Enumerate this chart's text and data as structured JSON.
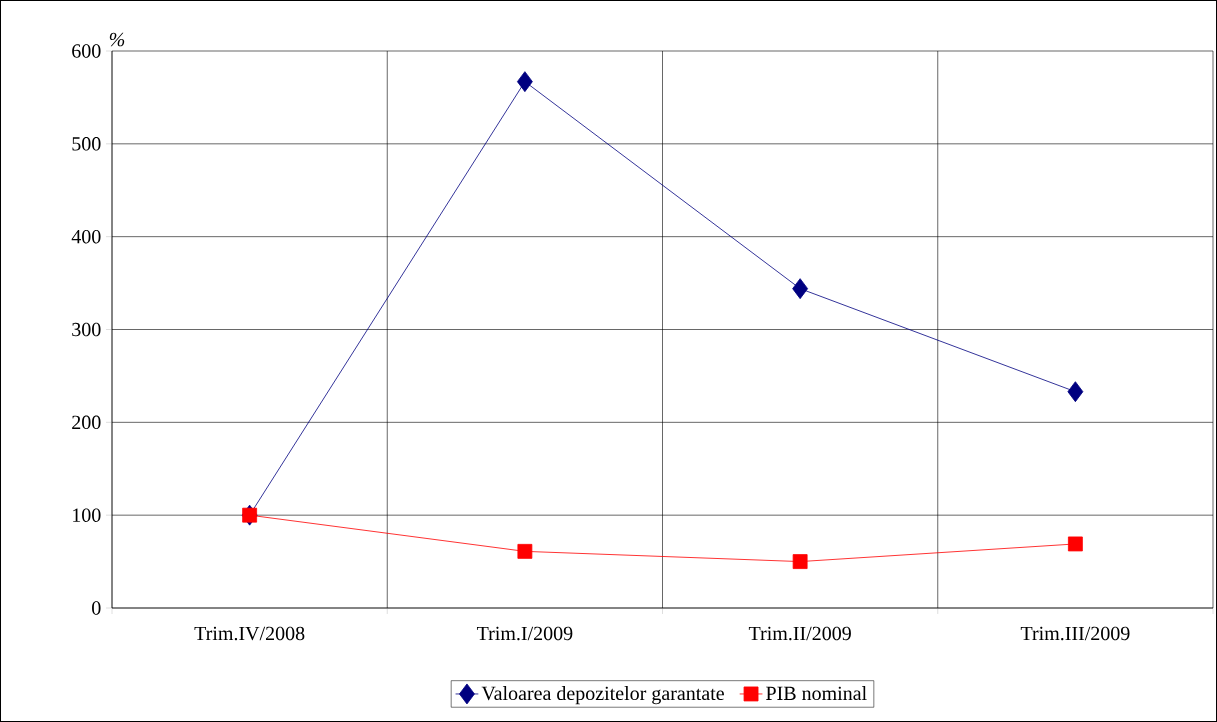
{
  "chart_data": {
    "type": "line",
    "ylabel": "%",
    "categories": [
      "Trim.IV/2008",
      "Trim.I/2009",
      "Trim.II/2009",
      "Trim.III/2009"
    ],
    "series": [
      {
        "name": "Valoarea depozitelor garantate",
        "color": "#000080",
        "marker": "diamond",
        "values": [
          100,
          567,
          344,
          233
        ]
      },
      {
        "name": "PIB nominal",
        "color": "#ff0000",
        "marker": "square",
        "values": [
          100,
          61,
          50,
          69
        ]
      }
    ],
    "ylim": [
      0,
      600
    ],
    "yticks": [
      0,
      100,
      200,
      300,
      400,
      500,
      600
    ],
    "grid": true,
    "legend": "bottom"
  }
}
